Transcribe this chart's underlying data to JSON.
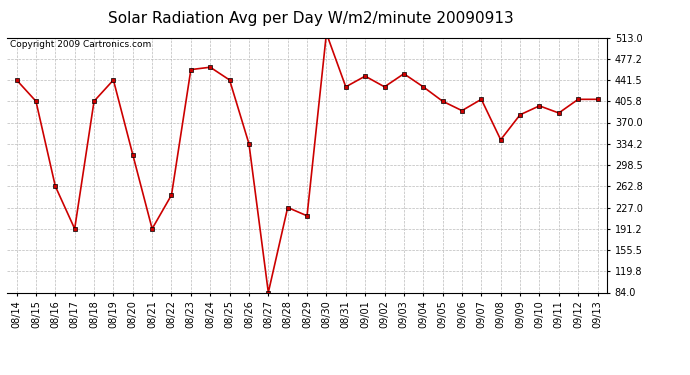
{
  "title": "Solar Radiation Avg per Day W/m2/minute 20090913",
  "copyright": "Copyright 2009 Cartronics.com",
  "dates": [
    "08/14",
    "08/15",
    "08/16",
    "08/17",
    "08/18",
    "08/19",
    "08/20",
    "08/21",
    "08/22",
    "08/23",
    "08/24",
    "08/25",
    "08/26",
    "08/27",
    "08/28",
    "08/29",
    "08/30",
    "08/31",
    "09/01",
    "09/02",
    "09/03",
    "09/04",
    "09/05",
    "09/06",
    "09/07",
    "09/08",
    "09/09",
    "09/10",
    "09/11",
    "09/12",
    "09/13"
  ],
  "values": [
    441.5,
    405.8,
    262.8,
    191.2,
    405.8,
    441.5,
    316.0,
    191.2,
    248.0,
    459.0,
    463.0,
    441.5,
    334.2,
    84.0,
    227.0,
    213.0,
    520.0,
    430.0,
    448.0,
    430.0,
    452.0,
    430.0,
    405.8,
    390.0,
    409.0,
    341.0,
    383.0,
    398.0,
    386.0,
    409.0,
    409.0
  ],
  "line_color": "#cc0000",
  "marker": "s",
  "marker_size": 2.5,
  "line_width": 1.2,
  "yticks": [
    84.0,
    119.8,
    155.5,
    191.2,
    227.0,
    262.8,
    298.5,
    334.2,
    370.0,
    405.8,
    441.5,
    477.2,
    513.0
  ],
  "ylim": [
    84.0,
    513.0
  ],
  "bg_color": "#ffffff",
  "plot_bg_color": "#ffffff",
  "grid_color": "#bbbbbb",
  "title_fontsize": 11,
  "copyright_fontsize": 6.5,
  "tick_fontsize": 7
}
